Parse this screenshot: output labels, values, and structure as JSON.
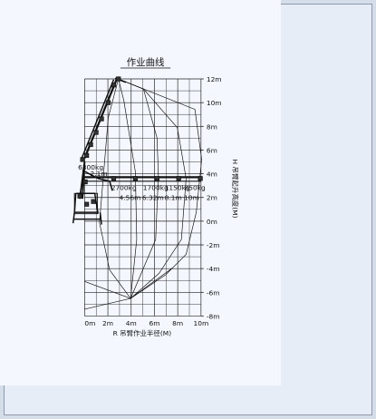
{
  "chart_data": {
    "type": "load-chart",
    "title": "作业曲线",
    "xlabel": "R 吊臂作业半径(M)",
    "ylabel": "H 吊臂起升高度(M)",
    "x_range": [
      0,
      10
    ],
    "y_range": [
      -8,
      12
    ],
    "x_ticks": [
      "0m",
      "2m",
      "4m",
      "6m",
      "8m",
      "10m"
    ],
    "y_ticks": [
      "12m",
      "10m",
      "8m",
      "6m",
      "4m",
      "2m",
      "0m",
      "-2m",
      "-4m",
      "-6m",
      "-8m"
    ],
    "grid": true,
    "load_labels": [
      {
        "load": "6300kg",
        "radius": "2.1m"
      },
      {
        "load": "2700kg",
        "radius": "4.56m"
      },
      {
        "load": "1700kg",
        "radius": "6.32m"
      },
      {
        "load": "1150kg",
        "radius": "8.1m"
      },
      {
        "load": "850kg",
        "radius": "10m"
      }
    ]
  },
  "colors": {
    "background": "#d4dde9",
    "frame": "#e7edf6",
    "plot": "#f4f8fe",
    "ink": "#111111"
  }
}
